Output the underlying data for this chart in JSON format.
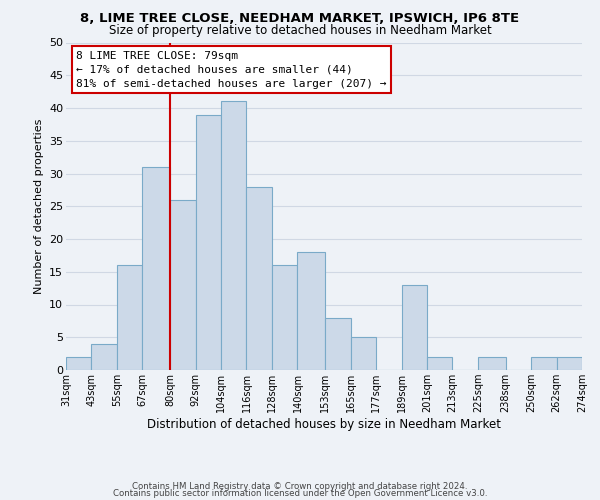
{
  "title": "8, LIME TREE CLOSE, NEEDHAM MARKET, IPSWICH, IP6 8TE",
  "subtitle": "Size of property relative to detached houses in Needham Market",
  "xlabel": "Distribution of detached houses by size in Needham Market",
  "ylabel": "Number of detached properties",
  "bar_color": "#ccd9e8",
  "bar_edge_color": "#7aaac8",
  "bins": [
    31,
    43,
    55,
    67,
    80,
    92,
    104,
    116,
    128,
    140,
    153,
    165,
    177,
    189,
    201,
    213,
    225,
    238,
    250,
    262,
    274
  ],
  "bin_labels": [
    "31sqm",
    "43sqm",
    "55sqm",
    "67sqm",
    "80sqm",
    "92sqm",
    "104sqm",
    "116sqm",
    "128sqm",
    "140sqm",
    "153sqm",
    "165sqm",
    "177sqm",
    "189sqm",
    "201sqm",
    "213sqm",
    "225sqm",
    "238sqm",
    "250sqm",
    "262sqm",
    "274sqm"
  ],
  "counts": [
    2,
    4,
    16,
    31,
    26,
    39,
    41,
    28,
    16,
    18,
    8,
    5,
    0,
    13,
    2,
    0,
    2,
    0,
    2,
    2
  ],
  "vline_x": 80,
  "vline_color": "#cc0000",
  "annotation_title": "8 LIME TREE CLOSE: 79sqm",
  "annotation_line1": "← 17% of detached houses are smaller (44)",
  "annotation_line2": "81% of semi-detached houses are larger (207) →",
  "ylim": [
    0,
    50
  ],
  "yticks": [
    0,
    5,
    10,
    15,
    20,
    25,
    30,
    35,
    40,
    45,
    50
  ],
  "footer1": "Contains HM Land Registry data © Crown copyright and database right 2024.",
  "footer2": "Contains public sector information licensed under the Open Government Licence v3.0.",
  "background_color": "#eef2f7",
  "grid_color": "#d0d8e4"
}
